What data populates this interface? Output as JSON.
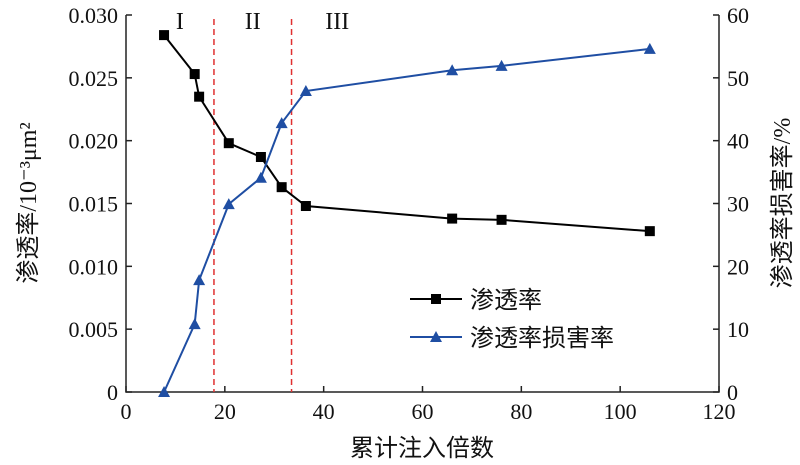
{
  "chart_data": {
    "type": "line",
    "xlabel": "累计注入倍数",
    "ylabel_left": "渗透率/10⁻³μm²",
    "ylabel_right": "渗透率损害率/%",
    "xlim": [
      0,
      120
    ],
    "ylim_left": [
      0,
      0.03
    ],
    "ylim_right": [
      0,
      60
    ],
    "xticks": [
      "0",
      "20",
      "40",
      "60",
      "80",
      "100",
      "120"
    ],
    "yticks_left": [
      "0",
      "0.005",
      "0.010",
      "0.015",
      "0.020",
      "0.025",
      "0.030"
    ],
    "yticks_right": [
      "0",
      "10",
      "20",
      "30",
      "40",
      "50",
      "60"
    ],
    "grid": false,
    "legend_position": "bottom-center",
    "region_labels": [
      "I",
      "II",
      "III"
    ],
    "region_dividers_x": [
      17.8,
      33.5
    ],
    "divider_color": "#e03030",
    "series": [
      {
        "name": "渗透率",
        "axis": "left",
        "color": "#000000",
        "marker": "square",
        "x": [
          7.7,
          13.9,
          14.8,
          20.8,
          27.3,
          31.5,
          36.4,
          66,
          76,
          106
        ],
        "y": [
          0.0284,
          0.0253,
          0.0235,
          0.0198,
          0.0187,
          0.0163,
          0.0148,
          0.0138,
          0.0137,
          0.0128
        ]
      },
      {
        "name": "渗透率损害率",
        "axis": "right",
        "color": "#1f4ea3",
        "marker": "triangle",
        "x": [
          7.7,
          13.9,
          14.8,
          20.8,
          27.3,
          31.5,
          36.4,
          66,
          76,
          106
        ],
        "y": [
          0,
          10.8,
          17.8,
          29.9,
          34.1,
          42.8,
          47.9,
          51.2,
          51.9,
          54.6
        ]
      }
    ]
  }
}
